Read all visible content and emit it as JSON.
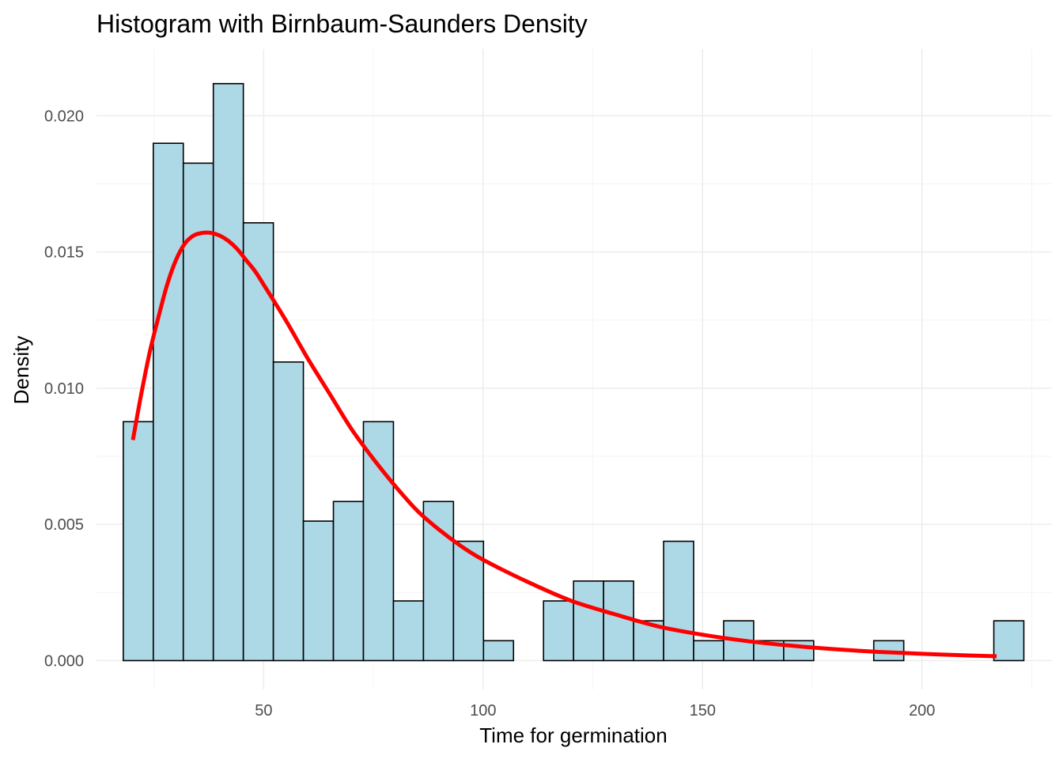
{
  "chart_data": {
    "type": "bar",
    "title": "Histogram with Birnbaum-Saunders Density",
    "xlabel": "Time for germination",
    "ylabel": "Density",
    "xlim": [
      11.9,
      229.6
    ],
    "ylim": [
      -0.00106,
      0.02245
    ],
    "x_ticks": [
      50,
      100,
      150,
      200
    ],
    "x_tick_labels": [
      "50",
      "100",
      "150",
      "200"
    ],
    "y_ticks": [
      0.0,
      0.005,
      0.01,
      0.015,
      0.02
    ],
    "y_tick_labels": [
      "0.000",
      "0.005",
      "0.010",
      "0.015",
      "0.020"
    ],
    "grid": true,
    "legend": "none",
    "colors": {
      "bar_fill": "#add8e6",
      "bar_outline": "#000000",
      "density_curve": "#ff0000"
    },
    "histogram": {
      "bin_edges": [
        18.0,
        24.84,
        31.68,
        38.52,
        45.36,
        52.2,
        59.04,
        65.88,
        72.72,
        79.56,
        86.4,
        93.24,
        100.08,
        106.92,
        113.76,
        120.6,
        127.44,
        134.28,
        141.12,
        147.96,
        154.8,
        161.64,
        168.48,
        175.32,
        182.16,
        189.0,
        195.84,
        202.68,
        209.52,
        216.36,
        223.2
      ],
      "density": [
        0.00877,
        0.01899,
        0.01826,
        0.02118,
        0.01607,
        0.01096,
        0.00512,
        0.00584,
        0.00877,
        0.00219,
        0.00584,
        0.00438,
        0.00073,
        0.0,
        0.00219,
        0.00292,
        0.00292,
        0.00146,
        0.00438,
        0.00073,
        0.00146,
        0.00073,
        0.00073,
        0.0,
        0.0,
        0.00073,
        0.0,
        0.0,
        0.0,
        0.00146
      ]
    },
    "series": [
      {
        "type": "line",
        "x": [
          20.2,
          22,
          24,
          26,
          28,
          30,
          32,
          34,
          36,
          38,
          40,
          42,
          44,
          46,
          48,
          50,
          55,
          60,
          65,
          70,
          75,
          80,
          85,
          90,
          95,
          100,
          110,
          120,
          130,
          140,
          150,
          160,
          170,
          180,
          190,
          200,
          210,
          217
        ],
        "y": [
          0.0081,
          0.0097,
          0.0113,
          0.0126,
          0.0138,
          0.0147,
          0.0153,
          0.0156,
          0.0157,
          0.0157,
          0.0156,
          0.0154,
          0.0151,
          0.0147,
          0.0143,
          0.0138,
          0.0125,
          0.0111,
          0.0098,
          0.0085,
          0.0074,
          0.0064,
          0.0055,
          0.0048,
          0.0042,
          0.0037,
          0.0029,
          0.0022,
          0.0017,
          0.00125,
          0.00095,
          0.00072,
          0.00055,
          0.00042,
          0.00032,
          0.00025,
          0.00019,
          0.00016
        ]
      }
    ]
  }
}
